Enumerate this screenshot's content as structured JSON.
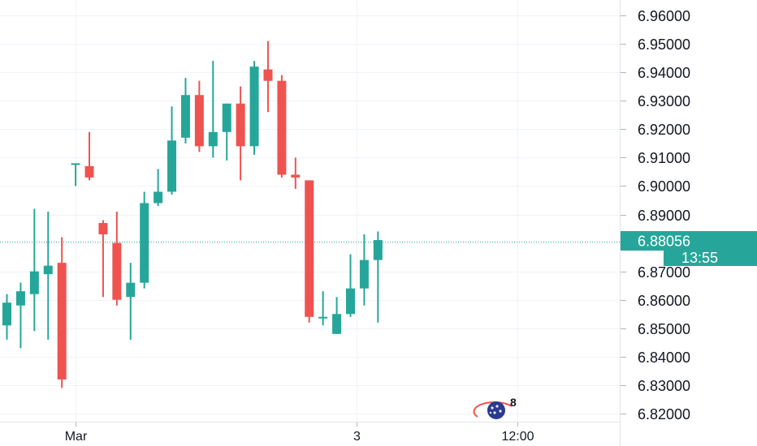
{
  "chart_data": {
    "type": "candlestick",
    "price_axis": {
      "range": [
        6.8165,
        6.9655
      ],
      "ticks": [
        "6.82000",
        "6.83000",
        "6.84000",
        "6.85000",
        "6.86000",
        "6.87000",
        "6.88000",
        "6.89000",
        "6.90000",
        "6.91000",
        "6.92000",
        "6.93000",
        "6.94000",
        "6.95000",
        "6.96000"
      ],
      "position": "right"
    },
    "time_axis": {
      "ticks": [
        {
          "label": "Mar",
          "index": 5.02
        },
        {
          "label": "3",
          "index": 25.44
        },
        {
          "label": "12:00",
          "index": 37.17
        }
      ]
    },
    "grid": true,
    "last_price": {
      "value": 6.88056,
      "label": "6.88056",
      "countdown": "13:55",
      "color": "#26a69a"
    },
    "colors": {
      "up": "#26a69a",
      "down": "#ef5350",
      "grid": "#f0f3fa",
      "text": "#131722"
    },
    "candles": [
      {
        "open": 6.851,
        "high": 6.862,
        "low": 6.846,
        "close": 6.859
      },
      {
        "open": 6.858,
        "high": 6.866,
        "low": 6.843,
        "close": 6.863
      },
      {
        "open": 6.862,
        "high": 6.892,
        "low": 6.849,
        "close": 6.87
      },
      {
        "open": 6.869,
        "high": 6.891,
        "low": 6.846,
        "close": 6.872
      },
      {
        "open": 6.873,
        "high": 6.882,
        "low": 6.829,
        "close": 6.832
      },
      {
        "open": 6.908,
        "high": 6.908,
        "low": 6.9,
        "close": 6.908
      },
      {
        "open": 6.907,
        "high": 6.919,
        "low": 6.902,
        "close": 6.903
      },
      {
        "open": 6.887,
        "high": 6.888,
        "low": 6.861,
        "close": 6.883
      },
      {
        "open": 6.88,
        "high": 6.891,
        "low": 6.858,
        "close": 6.86
      },
      {
        "open": 6.861,
        "high": 6.873,
        "low": 6.846,
        "close": 6.866
      },
      {
        "open": 6.866,
        "high": 6.898,
        "low": 6.864,
        "close": 6.894
      },
      {
        "open": 6.894,
        "high": 6.906,
        "low": 6.893,
        "close": 6.898
      },
      {
        "open": 6.898,
        "high": 6.928,
        "low": 6.897,
        "close": 6.916
      },
      {
        "open": 6.917,
        "high": 6.938,
        "low": 6.915,
        "close": 6.932
      },
      {
        "open": 6.932,
        "high": 6.937,
        "low": 6.912,
        "close": 6.914
      },
      {
        "open": 6.914,
        "high": 6.944,
        "low": 6.91,
        "close": 6.919
      },
      {
        "open": 6.919,
        "high": 6.929,
        "low": 6.909,
        "close": 6.929
      },
      {
        "open": 6.929,
        "high": 6.935,
        "low": 6.902,
        "close": 6.914
      },
      {
        "open": 6.914,
        "high": 6.944,
        "low": 6.911,
        "close": 6.942
      },
      {
        "open": 6.941,
        "high": 6.951,
        "low": 6.926,
        "close": 6.937
      },
      {
        "open": 6.937,
        "high": 6.939,
        "low": 6.903,
        "close": 6.904
      },
      {
        "open": 6.904,
        "high": 6.91,
        "low": 6.899,
        "close": 6.903
      },
      {
        "open": 6.902,
        "high": 6.902,
        "low": 6.852,
        "close": 6.854
      },
      {
        "open": 6.854,
        "high": 6.863,
        "low": 6.851,
        "close": 6.854
      },
      {
        "open": 6.848,
        "high": 6.861,
        "low": 6.848,
        "close": 6.855
      },
      {
        "open": 6.855,
        "high": 6.876,
        "low": 6.854,
        "close": 6.864
      },
      {
        "open": 6.864,
        "high": 6.883,
        "low": 6.858,
        "close": 6.874
      },
      {
        "open": 6.874,
        "high": 6.884,
        "low": 6.852,
        "close": 6.881
      }
    ]
  },
  "event_badge": {
    "icon": "economic-calendar-icon",
    "count": "8"
  }
}
